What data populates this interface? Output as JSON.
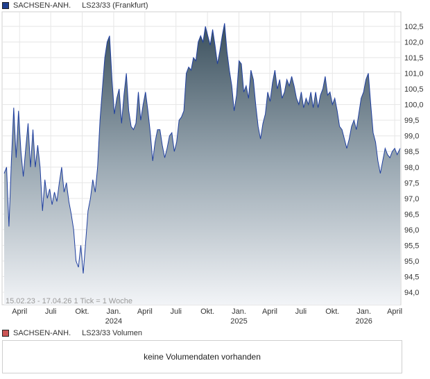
{
  "legend": {
    "instrument": "SACHSEN-ANH.",
    "series": "LS23/33 (Frankfurt)",
    "swatch_color": "#1f3f8f"
  },
  "volume": {
    "instrument": "SACHSEN-ANH.",
    "series": "LS23/33 Volumen",
    "swatch_color": "#cc5555",
    "message": "keine Volumendaten vorhanden"
  },
  "chart_data": {
    "type": "area",
    "range_note": "15.02.23 - 17.04.26   1 Tick = 1 Woche",
    "ylim": [
      93.6,
      102.8
    ],
    "y_ticks": [
      "94,0",
      "94,5",
      "95,0",
      "95,5",
      "96,0",
      "96,5",
      "97,0",
      "97,5",
      "98,0",
      "98,5",
      "99,0",
      "99,5",
      "100,0",
      "100,5",
      "101,0",
      "101,5",
      "102,0",
      "102,5"
    ],
    "x_ticks": [
      {
        "date": "2023-04-01",
        "label": "April",
        "sub": ""
      },
      {
        "date": "2023-07-01",
        "label": "Juli",
        "sub": ""
      },
      {
        "date": "2023-10-01",
        "label": "Okt.",
        "sub": ""
      },
      {
        "date": "2024-01-01",
        "label": "Jan.",
        "sub": "2024"
      },
      {
        "date": "2024-04-01",
        "label": "April",
        "sub": ""
      },
      {
        "date": "2024-07-01",
        "label": "Juli",
        "sub": ""
      },
      {
        "date": "2024-10-01",
        "label": "Okt.",
        "sub": ""
      },
      {
        "date": "2025-01-01",
        "label": "Jan.",
        "sub": "2025"
      },
      {
        "date": "2025-04-01",
        "label": "April",
        "sub": ""
      },
      {
        "date": "2025-07-01",
        "label": "Juli",
        "sub": ""
      },
      {
        "date": "2025-10-01",
        "label": "Okt.",
        "sub": ""
      },
      {
        "date": "2026-01-01",
        "label": "Jan.",
        "sub": "2026"
      },
      {
        "date": "2026-04-01",
        "label": "April",
        "sub": ""
      }
    ],
    "x_start": "2023-02-15",
    "x_end": "2026-04-17",
    "series": [
      {
        "points": [
          [
            "2023-02-15",
            97.8
          ],
          [
            "2023-02-22",
            98.0
          ],
          [
            "2023-03-01",
            96.1
          ],
          [
            "2023-03-08",
            98.2
          ],
          [
            "2023-03-15",
            99.9
          ],
          [
            "2023-03-22",
            98.3
          ],
          [
            "2023-03-29",
            99.8
          ],
          [
            "2023-04-05",
            98.5
          ],
          [
            "2023-04-12",
            97.7
          ],
          [
            "2023-04-19",
            98.6
          ],
          [
            "2023-04-26",
            99.4
          ],
          [
            "2023-05-03",
            98.0
          ],
          [
            "2023-05-10",
            99.2
          ],
          [
            "2023-05-17",
            98.0
          ],
          [
            "2023-05-24",
            98.7
          ],
          [
            "2023-05-31",
            98.0
          ],
          [
            "2023-06-07",
            96.6
          ],
          [
            "2023-06-14",
            97.6
          ],
          [
            "2023-06-21",
            97.0
          ],
          [
            "2023-06-28",
            97.3
          ],
          [
            "2023-07-05",
            96.8
          ],
          [
            "2023-07-12",
            97.2
          ],
          [
            "2023-07-19",
            96.9
          ],
          [
            "2023-07-26",
            97.5
          ],
          [
            "2023-08-02",
            98.0
          ],
          [
            "2023-08-09",
            97.2
          ],
          [
            "2023-08-16",
            97.5
          ],
          [
            "2023-08-23",
            96.9
          ],
          [
            "2023-08-30",
            96.5
          ],
          [
            "2023-09-06",
            96.0
          ],
          [
            "2023-09-13",
            95.0
          ],
          [
            "2023-09-20",
            94.8
          ],
          [
            "2023-09-27",
            95.5
          ],
          [
            "2023-10-04",
            94.6
          ],
          [
            "2023-10-11",
            95.6
          ],
          [
            "2023-10-18",
            96.6
          ],
          [
            "2023-10-25",
            97.0
          ],
          [
            "2023-11-01",
            97.6
          ],
          [
            "2023-11-08",
            97.2
          ],
          [
            "2023-11-15",
            98.0
          ],
          [
            "2023-11-22",
            99.5
          ],
          [
            "2023-11-29",
            100.5
          ],
          [
            "2023-12-06",
            101.5
          ],
          [
            "2023-12-13",
            102.0
          ],
          [
            "2023-12-20",
            102.2
          ],
          [
            "2023-12-27",
            100.8
          ],
          [
            "2024-01-03",
            99.7
          ],
          [
            "2024-01-10",
            100.2
          ],
          [
            "2024-01-17",
            100.5
          ],
          [
            "2024-01-24",
            99.4
          ],
          [
            "2024-01-31",
            100.3
          ],
          [
            "2024-02-07",
            101.0
          ],
          [
            "2024-02-14",
            99.8
          ],
          [
            "2024-02-21",
            99.3
          ],
          [
            "2024-02-28",
            99.2
          ],
          [
            "2024-03-06",
            99.4
          ],
          [
            "2024-03-13",
            100.4
          ],
          [
            "2024-03-20",
            99.5
          ],
          [
            "2024-03-27",
            100.0
          ],
          [
            "2024-04-03",
            100.4
          ],
          [
            "2024-04-10",
            99.8
          ],
          [
            "2024-04-17",
            99.1
          ],
          [
            "2024-04-24",
            98.2
          ],
          [
            "2024-05-01",
            98.8
          ],
          [
            "2024-05-08",
            99.2
          ],
          [
            "2024-05-15",
            99.2
          ],
          [
            "2024-05-22",
            98.7
          ],
          [
            "2024-05-29",
            98.3
          ],
          [
            "2024-06-05",
            98.6
          ],
          [
            "2024-06-12",
            99.0
          ],
          [
            "2024-06-19",
            99.1
          ],
          [
            "2024-06-26",
            98.5
          ],
          [
            "2024-07-03",
            98.8
          ],
          [
            "2024-07-10",
            99.5
          ],
          [
            "2024-07-17",
            99.6
          ],
          [
            "2024-07-24",
            99.8
          ],
          [
            "2024-07-31",
            101.0
          ],
          [
            "2024-08-07",
            101.2
          ],
          [
            "2024-08-14",
            101.1
          ],
          [
            "2024-08-21",
            101.5
          ],
          [
            "2024-08-28",
            101.4
          ],
          [
            "2024-09-04",
            102.0
          ],
          [
            "2024-09-11",
            102.2
          ],
          [
            "2024-09-18",
            102.0
          ],
          [
            "2024-09-25",
            102.5
          ],
          [
            "2024-10-02",
            102.2
          ],
          [
            "2024-10-09",
            101.9
          ],
          [
            "2024-10-16",
            102.4
          ],
          [
            "2024-10-23",
            101.9
          ],
          [
            "2024-10-30",
            101.3
          ],
          [
            "2024-11-06",
            101.7
          ],
          [
            "2024-11-13",
            102.2
          ],
          [
            "2024-11-20",
            102.6
          ],
          [
            "2024-11-27",
            101.7
          ],
          [
            "2024-12-04",
            101.1
          ],
          [
            "2024-12-11",
            100.6
          ],
          [
            "2024-12-18",
            99.8
          ],
          [
            "2024-12-25",
            100.3
          ],
          [
            "2025-01-01",
            101.4
          ],
          [
            "2025-01-08",
            101.3
          ],
          [
            "2025-01-15",
            100.4
          ],
          [
            "2025-01-22",
            100.6
          ],
          [
            "2025-01-29",
            100.2
          ],
          [
            "2025-02-05",
            101.1
          ],
          [
            "2025-02-12",
            100.8
          ],
          [
            "2025-02-19",
            100.0
          ],
          [
            "2025-02-26",
            99.3
          ],
          [
            "2025-03-05",
            98.9
          ],
          [
            "2025-03-12",
            99.4
          ],
          [
            "2025-03-19",
            99.7
          ],
          [
            "2025-03-26",
            100.4
          ],
          [
            "2025-04-02",
            100.1
          ],
          [
            "2025-04-09",
            100.7
          ],
          [
            "2025-04-16",
            101.1
          ],
          [
            "2025-04-23",
            100.5
          ],
          [
            "2025-04-30",
            100.8
          ],
          [
            "2025-05-07",
            100.2
          ],
          [
            "2025-05-14",
            100.4
          ],
          [
            "2025-05-21",
            100.8
          ],
          [
            "2025-05-28",
            100.6
          ],
          [
            "2025-06-04",
            100.9
          ],
          [
            "2025-06-11",
            100.6
          ],
          [
            "2025-06-18",
            100.2
          ],
          [
            "2025-06-25",
            100.0
          ],
          [
            "2025-07-02",
            100.4
          ],
          [
            "2025-07-09",
            99.9
          ],
          [
            "2025-07-16",
            100.2
          ],
          [
            "2025-07-23",
            100.0
          ],
          [
            "2025-07-30",
            100.4
          ],
          [
            "2025-08-06",
            99.9
          ],
          [
            "2025-08-13",
            100.4
          ],
          [
            "2025-08-20",
            99.9
          ],
          [
            "2025-08-27",
            100.3
          ],
          [
            "2025-09-03",
            100.5
          ],
          [
            "2025-09-10",
            100.9
          ],
          [
            "2025-09-17",
            100.3
          ],
          [
            "2025-09-24",
            100.4
          ],
          [
            "2025-10-01",
            100.0
          ],
          [
            "2025-10-08",
            100.2
          ],
          [
            "2025-10-15",
            99.8
          ],
          [
            "2025-10-22",
            99.3
          ],
          [
            "2025-10-29",
            99.2
          ],
          [
            "2025-11-05",
            98.9
          ],
          [
            "2025-11-12",
            98.6
          ],
          [
            "2025-11-19",
            98.9
          ],
          [
            "2025-11-26",
            99.3
          ],
          [
            "2025-12-03",
            99.5
          ],
          [
            "2025-12-10",
            99.2
          ],
          [
            "2025-12-17",
            99.7
          ],
          [
            "2025-12-24",
            100.2
          ],
          [
            "2025-12-31",
            100.4
          ],
          [
            "2026-01-07",
            100.8
          ],
          [
            "2026-01-14",
            101.0
          ],
          [
            "2026-01-21",
            100.0
          ],
          [
            "2026-01-28",
            99.1
          ],
          [
            "2026-02-04",
            98.8
          ],
          [
            "2026-02-11",
            98.2
          ],
          [
            "2026-02-18",
            97.8
          ],
          [
            "2026-02-25",
            98.2
          ],
          [
            "2026-03-04",
            98.6
          ],
          [
            "2026-03-11",
            98.4
          ],
          [
            "2026-03-18",
            98.3
          ],
          [
            "2026-03-25",
            98.5
          ],
          [
            "2026-04-01",
            98.6
          ],
          [
            "2026-04-08",
            98.4
          ],
          [
            "2026-04-17",
            98.6
          ]
        ]
      }
    ],
    "grid": true
  }
}
